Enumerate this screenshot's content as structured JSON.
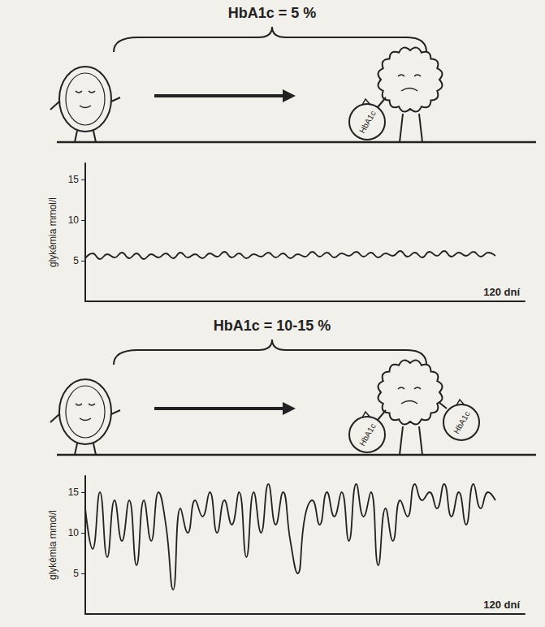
{
  "chart_data": [
    {
      "type": "line",
      "title": "HbA1c = 5 %",
      "ylabel": "glykémia mmol/l",
      "xlabel": "120 dní",
      "ball_label": "HbA1c",
      "color": "#222222",
      "grid": false,
      "tick_labels": "y",
      "xlim": [
        0,
        120
      ],
      "ylim": [
        0,
        17
      ],
      "yticks": [
        5,
        10,
        15
      ],
      "x": [
        0,
        2,
        4,
        6,
        8,
        10,
        12,
        14,
        16,
        18,
        20,
        22,
        24,
        26,
        28,
        30,
        32,
        34,
        36,
        38,
        40,
        42,
        44,
        46,
        48,
        50,
        52,
        54,
        56,
        58,
        60,
        62,
        64,
        66,
        68,
        70,
        72,
        74,
        76,
        78,
        80,
        82,
        84,
        86,
        88,
        90,
        92,
        94,
        96,
        98,
        100,
        102,
        104,
        106,
        108,
        110,
        112
      ],
      "values": [
        5.3,
        5.9,
        5.2,
        5.8,
        5.4,
        6.0,
        5.3,
        5.9,
        5.2,
        5.8,
        5.4,
        5.9,
        5.3,
        6.0,
        5.4,
        5.8,
        5.3,
        5.9,
        5.5,
        6.1,
        5.4,
        5.9,
        5.3,
        5.8,
        5.5,
        6.0,
        5.4,
        5.9,
        5.3,
        5.8,
        5.5,
        6.1,
        5.5,
        6.0,
        5.4,
        5.9,
        5.6,
        6.1,
        5.5,
        6.0,
        5.4,
        5.9,
        5.6,
        6.2,
        5.5,
        6.0,
        5.4,
        6.1,
        5.6,
        6.2,
        5.5,
        6.0,
        5.6,
        6.1,
        5.5,
        6.0,
        5.6
      ]
    },
    {
      "type": "line",
      "title": "HbA1c = 10-15 %",
      "ylabel": "glykémia mmol/l",
      "xlabel": "120 dní",
      "ball_label": "HbA1c",
      "color": "#222222",
      "grid": false,
      "tick_labels": "y",
      "xlim": [
        0,
        120
      ],
      "ylim": [
        0,
        17
      ],
      "yticks": [
        5,
        10,
        15
      ],
      "x": [
        0,
        2,
        4,
        6,
        8,
        10,
        12,
        14,
        16,
        18,
        20,
        22,
        24,
        26,
        28,
        30,
        32,
        34,
        36,
        38,
        40,
        42,
        44,
        46,
        48,
        50,
        52,
        54,
        56,
        58,
        60,
        62,
        64,
        66,
        68,
        70,
        72,
        74,
        76,
        78,
        80,
        82,
        84,
        86,
        88,
        90,
        92,
        94,
        96,
        98,
        100,
        102,
        104,
        106,
        108,
        110,
        112
      ],
      "values": [
        13,
        8,
        15,
        7,
        14,
        9,
        14,
        6,
        14,
        9,
        15,
        11,
        3,
        13,
        10,
        14,
        12,
        15,
        10,
        14,
        11,
        15,
        7,
        15,
        10,
        16,
        11,
        15,
        9,
        5,
        12,
        14,
        11,
        15,
        12,
        15,
        9,
        16,
        12,
        15,
        6,
        13,
        9,
        14,
        12,
        16,
        14,
        15,
        13,
        16,
        12,
        15,
        11,
        16,
        13,
        15,
        14
      ]
    }
  ]
}
